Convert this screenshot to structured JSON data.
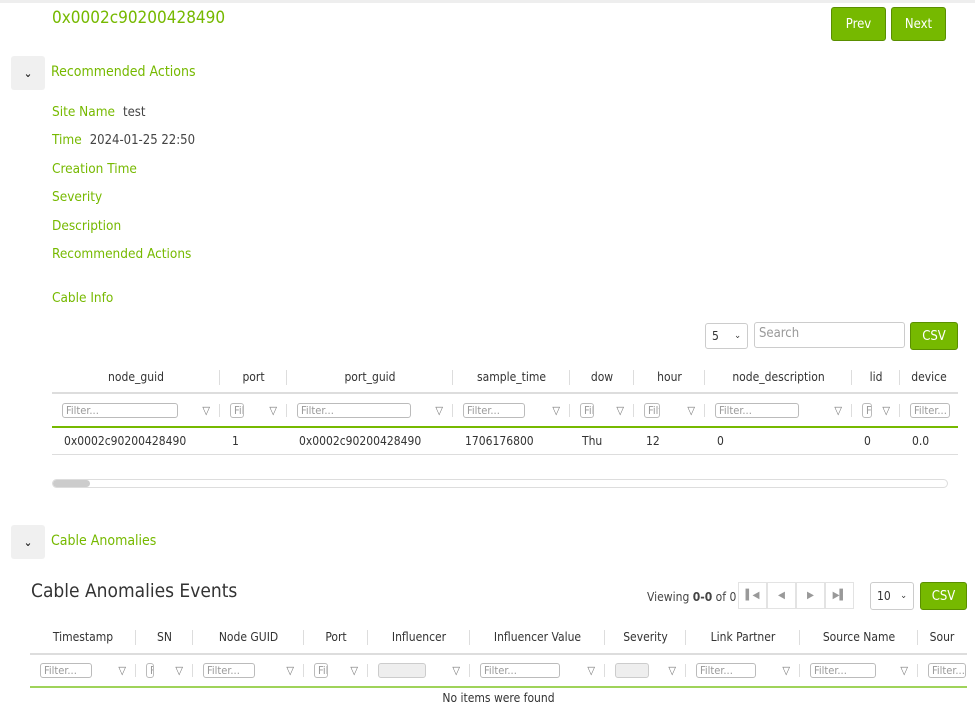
{
  "title": "0x0002c90200428490",
  "nav": {
    "prev": "Prev",
    "next": "Next"
  },
  "colors": {
    "accent": "#76b900"
  },
  "recommended": {
    "label": "Recommended Actions",
    "toggle_icon": "chevron-down-icon",
    "fields": [
      {
        "label": "Site Name",
        "value": "test"
      },
      {
        "label": "Time",
        "value": "2024-01-25 22:50"
      },
      {
        "label": "Creation Time",
        "value": ""
      },
      {
        "label": "Severity",
        "value": ""
      },
      {
        "label": "Description",
        "value": ""
      },
      {
        "label": "Recommended Actions",
        "value": ""
      }
    ],
    "cable_info": "Cable Info"
  },
  "cable_table": {
    "page_size": "5",
    "search_placeholder": "Search",
    "csv": "CSV",
    "filter_placeholder": "Filter...",
    "columns": [
      "node_guid",
      "port",
      "port_guid",
      "sample_time",
      "dow",
      "hour",
      "node_description",
      "lid",
      "device"
    ],
    "rows": [
      [
        "0x0002c90200428490",
        "1",
        "0x0002c90200428490",
        "1706176800",
        "Thu",
        "12",
        "0",
        "0",
        "0.0"
      ]
    ]
  },
  "anomalies": {
    "label": "Cable Anomalies",
    "events_title": "Cable Anomalies Events",
    "viewing_prefix": "Viewing ",
    "viewing_range": "0-0",
    "viewing_suffix": " of 0",
    "page_size": "10",
    "csv": "CSV",
    "filter_placeholder": "Filter...",
    "columns": [
      "Timestamp",
      "SN",
      "Node GUID",
      "Port",
      "Influencer",
      "Influencer Value",
      "Severity",
      "Link Partner",
      "Source Name",
      "Sour"
    ],
    "empty": "No items were found"
  }
}
